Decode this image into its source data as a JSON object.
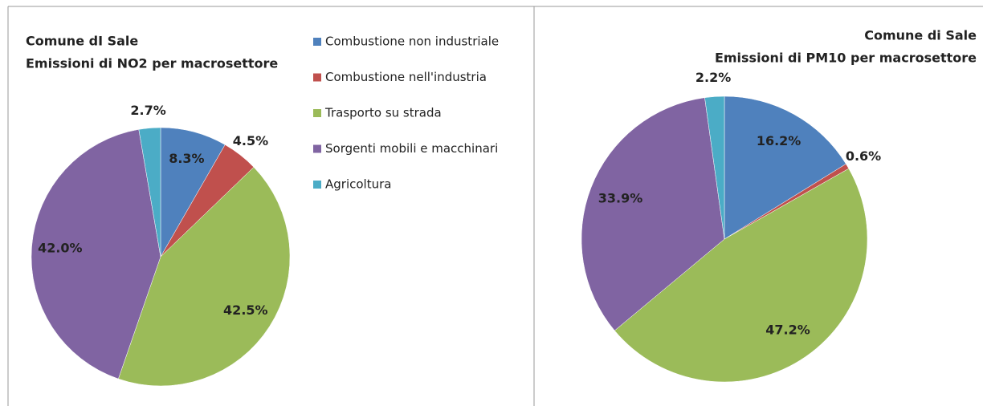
{
  "chart_data": [
    {
      "type": "pie",
      "title": "Comune dI Sale",
      "subtitle": "Emissioni di  NO2 per macrosettore",
      "categories": [
        "Combustione non industriale",
        "Combustione nell'industria",
        "Trasporto su strada",
        "Sorgenti mobili e macchinari",
        "Agricoltura"
      ],
      "values": [
        8.3,
        4.5,
        42.5,
        42.0,
        2.7
      ],
      "value_labels": [
        "8.3%",
        "4.5%",
        "42.5%",
        "42.0%",
        "2.7%"
      ],
      "colors": [
        "#4f81bd",
        "#c0504d",
        "#9bbb59",
        "#8064a2",
        "#4bacc6"
      ],
      "legend": "right"
    },
    {
      "type": "pie",
      "title": "Comune di Sale",
      "subtitle": "Emissioni di  PM10 per macrosettore",
      "values": [
        16.2,
        0.6,
        47.2,
        33.9,
        2.2
      ],
      "value_labels": [
        "16.2%",
        "0.6%",
        "47.2%",
        "33.9%",
        "2.2%"
      ],
      "colors": [
        "#4f81bd",
        "#c0504d",
        "#9bbb59",
        "#8064a2",
        "#4bacc6"
      ]
    }
  ]
}
